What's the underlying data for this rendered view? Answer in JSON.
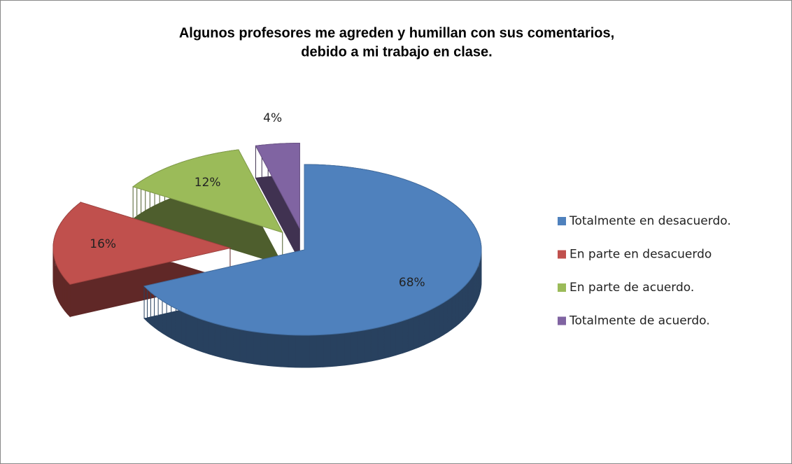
{
  "chart_data": {
    "type": "pie",
    "title": [
      "Algunos profesores me agreden y humillan con sus comentarios,",
      "debido a mi trabajo en clase."
    ],
    "categories": [
      "Totalmente en desacuerdo.",
      "En parte en desacuerdo",
      "En parte de acuerdo.",
      "Totalmente de acuerdo."
    ],
    "values": [
      68,
      16,
      12,
      4
    ],
    "value_labels": [
      "68%",
      "16%",
      "12%",
      "4%"
    ],
    "colors": [
      "#4f81bd",
      "#c0504d",
      "#9bbb59",
      "#8064a2"
    ],
    "legend": "right"
  }
}
